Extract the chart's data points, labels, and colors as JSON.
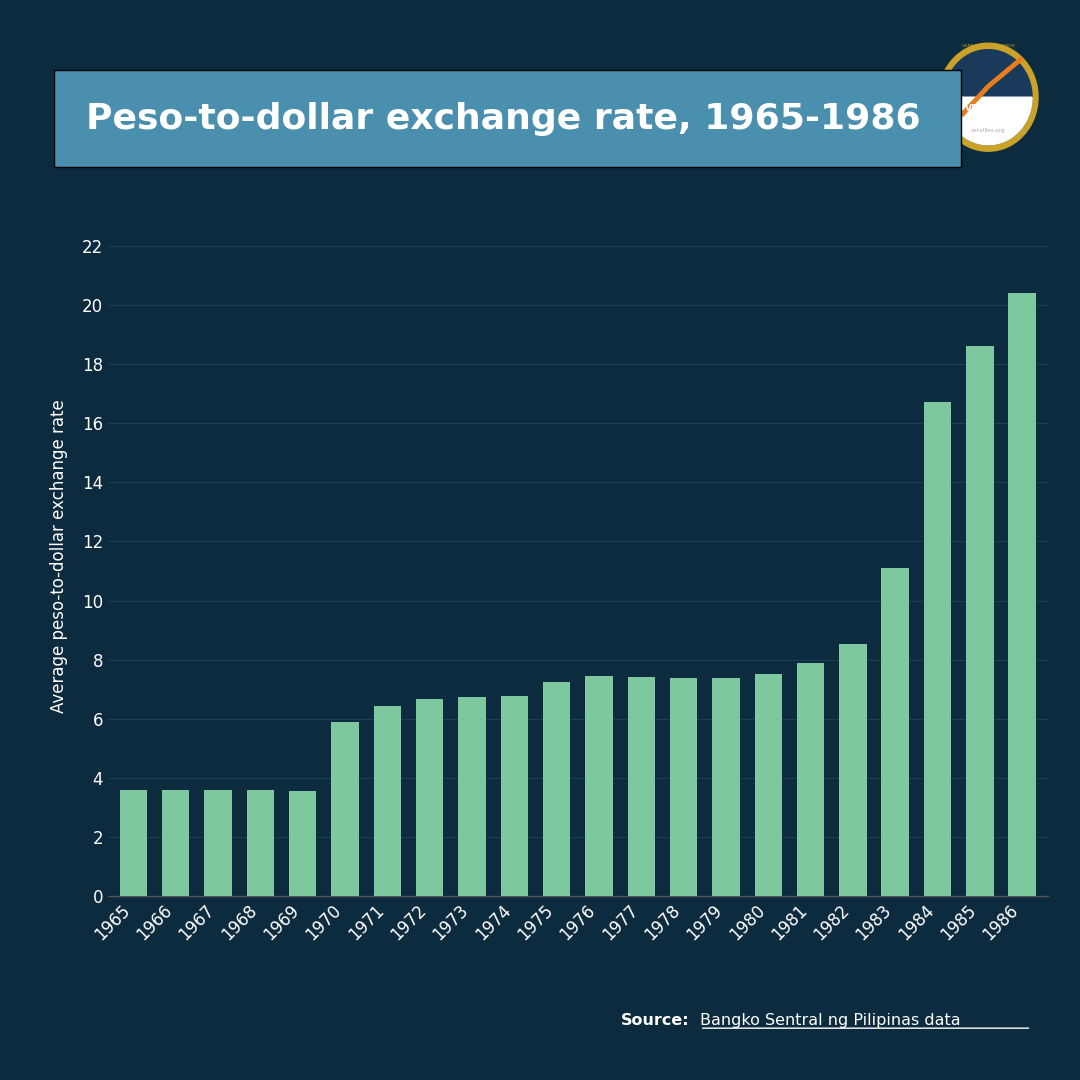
{
  "title": "Peso-to-dollar exchange rate, 1965-1986",
  "ylabel": "Average peso-to-dollar exchange rate",
  "background_color": "#0d2b3e",
  "title_bg_color": "#4a8fad",
  "bar_color": "#7ec8a0",
  "axis_text_color": "#ffffff",
  "years": [
    "1965",
    "1966",
    "1967",
    "1968",
    "1969",
    "1970",
    "1971",
    "1972",
    "1973",
    "1974",
    "1975",
    "1976",
    "1977",
    "1978",
    "1979",
    "1980",
    "1981",
    "1982",
    "1983",
    "1984",
    "1985",
    "1986"
  ],
  "values": [
    3.6,
    3.6,
    3.6,
    3.6,
    3.55,
    5.9,
    6.43,
    6.67,
    6.73,
    6.79,
    7.25,
    7.44,
    7.4,
    7.37,
    7.38,
    7.51,
    7.9,
    8.54,
    11.11,
    16.7,
    18.61,
    20.39
  ],
  "ylim": [
    0,
    23
  ],
  "yticks": [
    0,
    2,
    4,
    6,
    8,
    10,
    12,
    14,
    16,
    18,
    20,
    22
  ],
  "source_label": "Source:",
  "source_link": "Bangko Sentral ng Pilipinas data",
  "title_fontsize": 26,
  "axis_label_fontsize": 12,
  "tick_fontsize": 12
}
